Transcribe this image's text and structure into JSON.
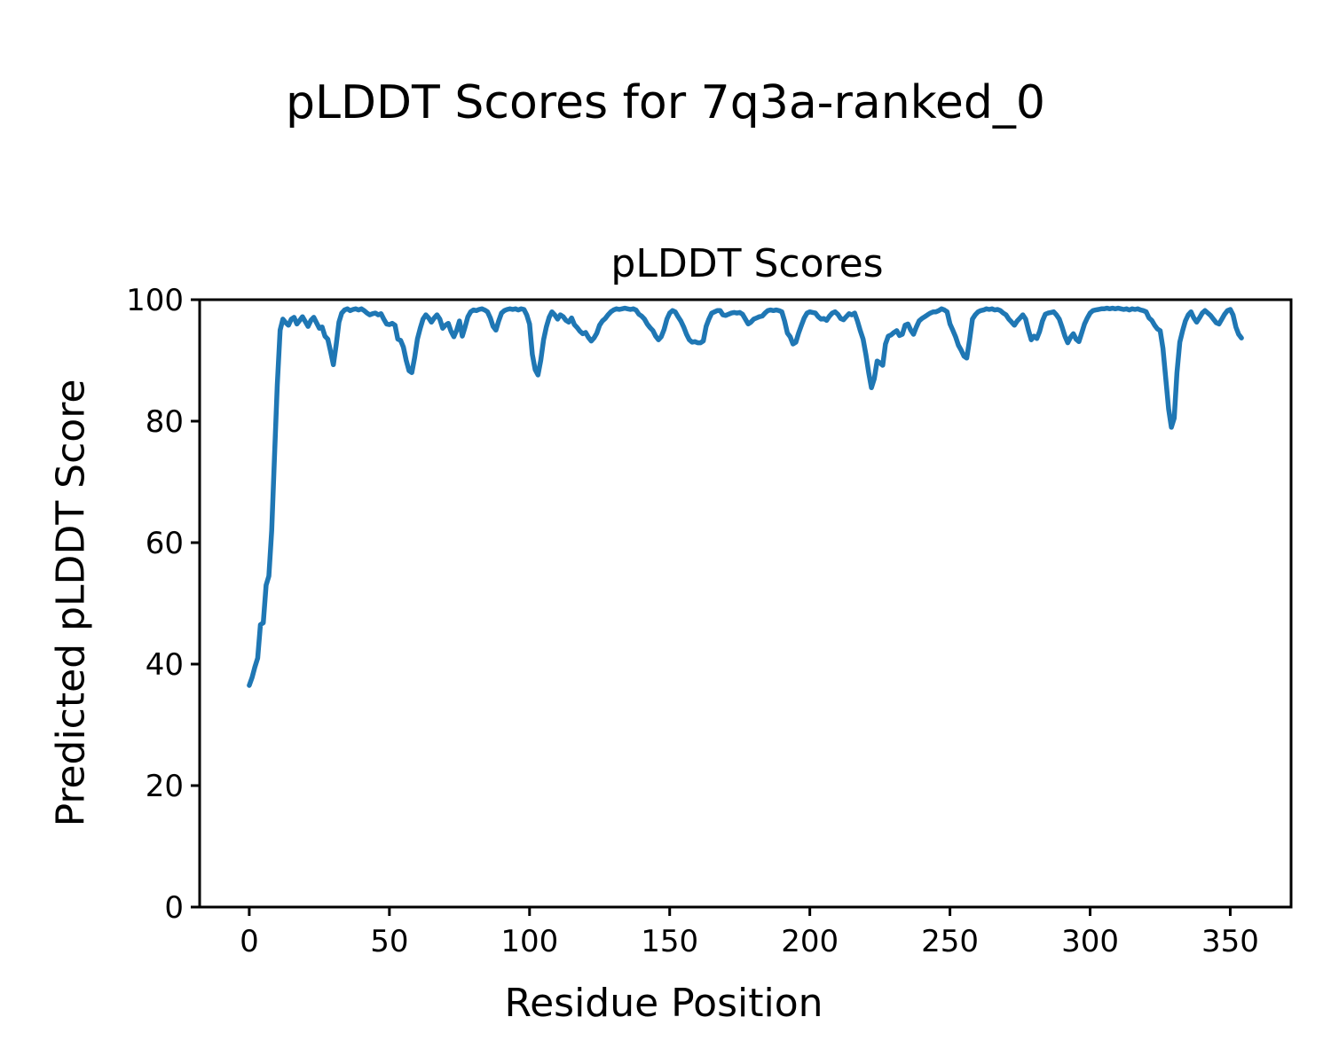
{
  "figure": {
    "suptitle": "pLDDT Scores for 7q3a-ranked_0"
  },
  "chart_data": {
    "type": "line",
    "title": "pLDDT Scores",
    "xlabel": "Residue Position",
    "ylabel": "Predicted pLDDT Score",
    "x_start": 0,
    "x_step": 1,
    "xlim": [
      -17.7,
      371.7
    ],
    "ylim": [
      0,
      100
    ],
    "x_ticks": [
      0,
      50,
      100,
      150,
      200,
      250,
      300,
      350
    ],
    "y_ticks": [
      0,
      20,
      40,
      60,
      80,
      100
    ],
    "grid": false,
    "legend": null,
    "line_color": "#1f77b4",
    "line_width": 5.5,
    "axis_color": "#000000",
    "values": [
      36.5,
      37.8,
      39.5,
      41.0,
      46.5,
      46.8,
      53.0,
      54.5,
      62.0,
      74.0,
      86.0,
      95.0,
      96.8,
      96.2,
      95.8,
      96.8,
      97.1,
      96.0,
      96.6,
      97.2,
      96.4,
      95.6,
      96.6,
      97.1,
      96.2,
      95.3,
      95.5,
      94.0,
      93.5,
      91.5,
      89.3,
      92.5,
      96.3,
      97.8,
      98.3,
      98.5,
      98.2,
      98.4,
      98.5,
      98.3,
      98.5,
      98.2,
      97.8,
      97.5,
      97.7,
      97.8,
      97.5,
      97.7,
      96.8,
      96.0,
      95.9,
      96.1,
      95.8,
      93.5,
      93.3,
      92.2,
      90.0,
      88.3,
      88.0,
      90.5,
      93.5,
      95.3,
      96.8,
      97.5,
      97.0,
      96.3,
      97.0,
      97.5,
      96.8,
      95.3,
      95.8,
      96.1,
      94.8,
      93.9,
      95.0,
      96.5,
      94.0,
      95.5,
      97.2,
      98.0,
      98.3,
      98.2,
      98.4,
      98.5,
      98.3,
      98.0,
      97.0,
      95.6,
      95.0,
      96.5,
      97.8,
      98.2,
      98.4,
      98.5,
      98.4,
      98.5,
      98.3,
      98.5,
      98.4,
      97.5,
      96.0,
      91.0,
      88.5,
      87.6,
      90.0,
      93.4,
      95.5,
      97.1,
      98.0,
      97.5,
      96.8,
      97.5,
      97.2,
      96.6,
      96.3,
      97.0,
      95.9,
      95.4,
      94.8,
      94.4,
      94.6,
      93.8,
      93.2,
      93.7,
      94.5,
      95.8,
      96.5,
      96.9,
      97.5,
      98.0,
      98.3,
      98.5,
      98.4,
      98.5,
      98.6,
      98.5,
      98.4,
      98.5,
      98.3,
      97.6,
      97.3,
      96.8,
      96.0,
      95.4,
      94.9,
      94.0,
      93.4,
      93.9,
      95.1,
      96.8,
      97.8,
      98.2,
      98.0,
      97.2,
      96.5,
      95.5,
      94.3,
      93.4,
      93.0,
      93.1,
      92.9,
      92.9,
      93.2,
      95.6,
      96.8,
      97.8,
      98.0,
      98.2,
      98.2,
      97.5,
      97.4,
      97.6,
      97.8,
      97.9,
      97.8,
      97.9,
      97.6,
      96.8,
      96.0,
      96.3,
      96.8,
      97.0,
      97.2,
      97.3,
      97.8,
      98.2,
      98.3,
      98.2,
      98.3,
      98.2,
      98.0,
      96.5,
      94.5,
      93.9,
      92.7,
      93.0,
      94.5,
      95.8,
      97.0,
      97.8,
      98.0,
      97.9,
      97.8,
      97.2,
      96.8,
      96.9,
      96.6,
      97.3,
      97.8,
      98.0,
      97.6,
      96.9,
      96.7,
      97.2,
      97.7,
      97.5,
      97.8,
      96.5,
      94.9,
      93.5,
      91.0,
      88.0,
      85.5,
      87.0,
      89.9,
      89.6,
      89.2,
      92.7,
      94.0,
      94.2,
      94.6,
      94.9,
      94.1,
      94.3,
      95.8,
      96.0,
      95.0,
      94.3,
      95.5,
      96.5,
      96.9,
      97.2,
      97.5,
      97.8,
      98.0,
      98.0,
      98.2,
      98.5,
      98.3,
      98.0,
      96.0,
      95.0,
      93.9,
      92.5,
      91.7,
      90.7,
      90.4,
      93.4,
      96.8,
      97.5,
      98.0,
      98.2,
      98.3,
      98.5,
      98.4,
      98.5,
      98.3,
      98.4,
      98.2,
      97.8,
      97.5,
      96.8,
      96.3,
      95.8,
      96.5,
      97.0,
      97.5,
      96.8,
      95.0,
      93.4,
      94.0,
      93.6,
      94.8,
      96.5,
      97.6,
      97.8,
      97.9,
      98.0,
      97.5,
      96.8,
      95.5,
      94.0,
      92.9,
      93.8,
      94.4,
      93.5,
      93.1,
      94.5,
      96.0,
      97.0,
      97.8,
      98.2,
      98.3,
      98.4,
      98.5,
      98.5,
      98.6,
      98.5,
      98.6,
      98.5,
      98.6,
      98.5,
      98.4,
      98.5,
      98.3,
      98.5,
      98.4,
      98.5,
      98.3,
      98.2,
      98.0,
      97.0,
      96.6,
      95.8,
      95.2,
      94.9,
      92.0,
      87.0,
      82.0,
      79.0,
      80.5,
      88.0,
      93.0,
      94.9,
      96.5,
      97.5,
      98.0,
      97.0,
      96.3,
      97.0,
      97.8,
      98.2,
      97.8,
      97.4,
      96.8,
      96.2,
      96.0,
      96.8,
      97.6,
      98.2,
      98.4,
      97.5,
      95.5,
      94.3,
      93.7
    ]
  }
}
